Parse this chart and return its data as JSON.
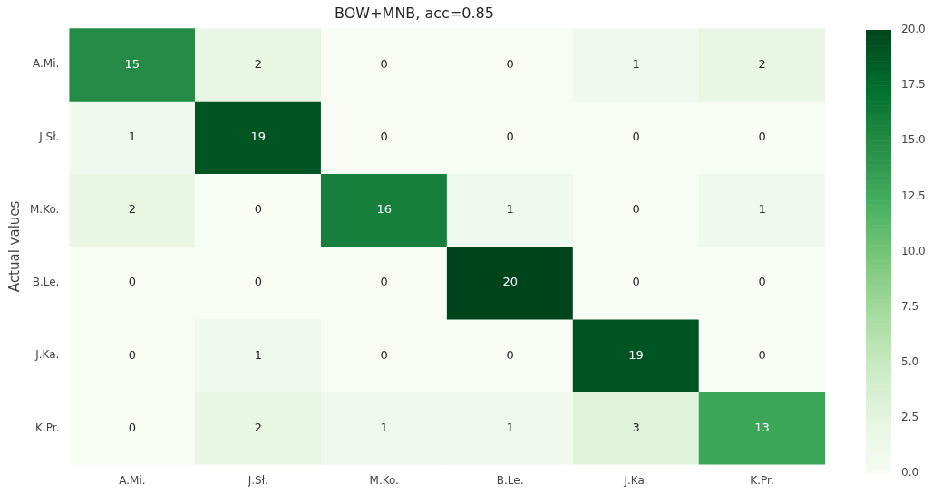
{
  "chart_data": {
    "type": "heatmap",
    "title": "BOW+MNB, acc=0.85",
    "ylabel": "Actual values",
    "categories": [
      "A.Mi.",
      "J.Sł.",
      "M.Ko.",
      "B.Le.",
      "J.Ka.",
      "K.Pr."
    ],
    "y_categories": [
      "A.Mi.",
      "J.Sł.",
      "M.Ko.",
      "B.Le.",
      "J.Ka.",
      "K.Pr."
    ],
    "cells": [
      [
        15,
        2,
        0,
        0,
        1,
        2
      ],
      [
        1,
        19,
        0,
        0,
        0,
        0
      ],
      [
        2,
        0,
        16,
        1,
        0,
        1
      ],
      [
        0,
        0,
        0,
        20,
        0,
        0
      ],
      [
        0,
        1,
        0,
        0,
        19,
        0
      ],
      [
        0,
        2,
        1,
        1,
        3,
        13
      ]
    ],
    "clim": [
      0,
      20
    ],
    "cticks": [
      {
        "value": 0,
        "label": "0.0"
      },
      {
        "value": 2.5,
        "label": "2.5"
      },
      {
        "value": 5,
        "label": "5.0"
      },
      {
        "value": 7.5,
        "label": "7.5"
      },
      {
        "value": 10,
        "label": "10.0"
      },
      {
        "value": 12.5,
        "label": "12.5"
      },
      {
        "value": 15,
        "label": "15.0"
      },
      {
        "value": 17.5,
        "label": "17.5"
      },
      {
        "value": 20,
        "label": "20.0"
      }
    ],
    "data_labels": true
  }
}
